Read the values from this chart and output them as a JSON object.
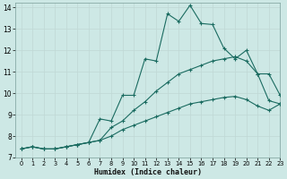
{
  "xlabel": "Humidex (Indice chaleur)",
  "background_color": "#cde8e5",
  "grid_color": "#c0d8d5",
  "line_color": "#1a6b60",
  "xlim": [
    -0.5,
    23
  ],
  "ylim": [
    7,
    14.2
  ],
  "yticks": [
    7,
    8,
    9,
    10,
    11,
    12,
    13,
    14
  ],
  "xticks": [
    0,
    1,
    2,
    3,
    4,
    5,
    6,
    7,
    8,
    9,
    10,
    11,
    12,
    13,
    14,
    15,
    16,
    17,
    18,
    19,
    20,
    21,
    22,
    23
  ],
  "series1_x": [
    0,
    1,
    2,
    3,
    4,
    5,
    6,
    7,
    8,
    9,
    10,
    11,
    12,
    13,
    14,
    15,
    16,
    17,
    18,
    19,
    20,
    21,
    22,
    23
  ],
  "series1_y": [
    7.4,
    7.5,
    7.4,
    7.4,
    7.5,
    7.6,
    7.7,
    8.8,
    8.7,
    9.9,
    9.9,
    11.6,
    11.5,
    13.7,
    13.35,
    14.1,
    13.25,
    13.2,
    12.1,
    11.6,
    12.0,
    10.9,
    10.9,
    9.9
  ],
  "series2_x": [
    0,
    1,
    2,
    3,
    4,
    5,
    6,
    7,
    8,
    9,
    10,
    11,
    12,
    13,
    14,
    15,
    16,
    17,
    18,
    19,
    20,
    21,
    22,
    23
  ],
  "series2_y": [
    7.4,
    7.5,
    7.4,
    7.4,
    7.5,
    7.6,
    7.7,
    7.8,
    8.4,
    8.7,
    9.2,
    9.6,
    10.1,
    10.5,
    10.9,
    11.1,
    11.3,
    11.5,
    11.6,
    11.7,
    11.5,
    10.9,
    9.65,
    9.5
  ],
  "series3_x": [
    0,
    1,
    2,
    3,
    4,
    5,
    6,
    7,
    8,
    9,
    10,
    11,
    12,
    13,
    14,
    15,
    16,
    17,
    18,
    19,
    20,
    21,
    22,
    23
  ],
  "series3_y": [
    7.4,
    7.5,
    7.4,
    7.4,
    7.5,
    7.6,
    7.7,
    7.8,
    8.0,
    8.3,
    8.5,
    8.7,
    8.9,
    9.1,
    9.3,
    9.5,
    9.6,
    9.7,
    9.8,
    9.85,
    9.7,
    9.4,
    9.2,
    9.5
  ]
}
